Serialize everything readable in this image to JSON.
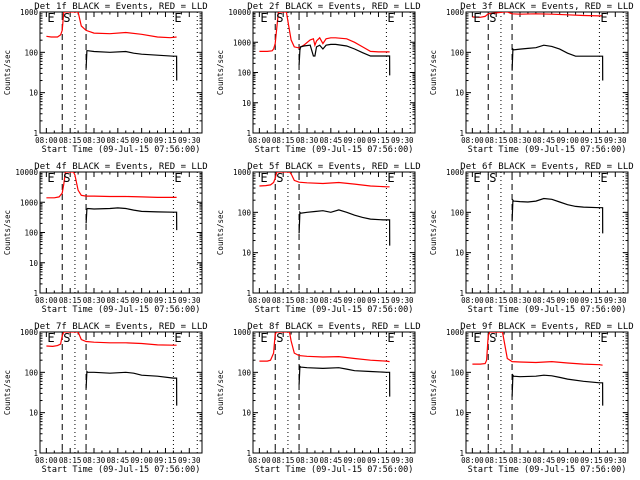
{
  "figure": {
    "layout": "3x3 grid",
    "colors": {
      "events": "#000000",
      "lld": "#ff0000",
      "axes": "#000000",
      "background": "#ffffff"
    }
  },
  "chart_data": [
    {
      "type": "line",
      "title": "Det 1f BLACK = Events, RED = LLD",
      "xlabel": "Start Time (09-Jul-15 07:56:00)",
      "ylabel": "Counts/sec",
      "yscale": "log",
      "ylim": [
        1,
        1000
      ],
      "yticks": [
        "1",
        "10",
        "100",
        "1000"
      ],
      "xticks": [
        "08:00",
        "08:15",
        "08:30",
        "08:45",
        "09:00",
        "09:15",
        "09:30"
      ],
      "xlim_min": [
        0,
        98
      ],
      "markers": [
        {
          "label": "E",
          "t": 0
        },
        {
          "label": "S",
          "t": 10
        },
        {
          "label": "E",
          "t": 80
        }
      ],
      "vlines_dashed": [
        10,
        25
      ],
      "vlines_dotted": [
        18,
        80,
        95
      ],
      "series": [
        {
          "name": "LLD",
          "color": "red",
          "t": [
            0,
            3,
            7,
            9,
            10,
            11,
            12,
            13,
            19,
            20,
            22,
            25,
            30,
            40,
            50,
            60,
            70,
            78,
            82
          ],
          "values": [
            250,
            240,
            240,
            270,
            350,
            1200,
            3000,
            5000,
            5000,
            1200,
            450,
            350,
            300,
            290,
            310,
            280,
            240,
            230,
            240
          ]
        },
        {
          "name": "Events",
          "color": "black",
          "t": [
            25,
            25.5,
            26,
            30,
            40,
            50,
            55,
            60,
            70,
            80,
            82,
            82.1
          ],
          "values": [
            40,
            110,
            110,
            105,
            100,
            105,
            95,
            90,
            85,
            80,
            80,
            20
          ]
        }
      ]
    },
    {
      "type": "line",
      "title": "Det 2f BLACK = Events, RED = LLD",
      "xlabel": "Start Time (09-Jul-15 07:56:00)",
      "ylabel": "Counts/sec",
      "yscale": "log",
      "ylim": [
        1,
        10000
      ],
      "yticks": [
        "1",
        "10",
        "100",
        "1000",
        "10000"
      ],
      "xticks": [
        "08:00",
        "08:15",
        "08:30",
        "08:45",
        "09:00",
        "09:15",
        "09:30"
      ],
      "markers": [
        {
          "label": "E",
          "t": 0
        },
        {
          "label": "S",
          "t": 10
        },
        {
          "label": "E",
          "t": 80
        }
      ],
      "vlines_dashed": [
        10,
        25
      ],
      "vlines_dotted": [
        18,
        80,
        95
      ],
      "series": [
        {
          "name": "LLD",
          "color": "red",
          "t": [
            0,
            5,
            8,
            9,
            10,
            11,
            12,
            13,
            17,
            18,
            20,
            22,
            25,
            28,
            32,
            34,
            35,
            36,
            38,
            40,
            42,
            45,
            48,
            55,
            60,
            65,
            70,
            75,
            80,
            82
          ],
          "values": [
            500,
            500,
            520,
            600,
            900,
            3000,
            10000,
            20000,
            20000,
            5000,
            1200,
            700,
            650,
            800,
            1200,
            1300,
            800,
            1100,
            1400,
            900,
            1300,
            1400,
            1400,
            1300,
            1000,
            700,
            500,
            480,
            480,
            480
          ]
        },
        {
          "name": "Events",
          "color": "black",
          "t": [
            25,
            25.5,
            26,
            28,
            32,
            34,
            35,
            36,
            38,
            40,
            42,
            45,
            48,
            55,
            60,
            65,
            70,
            80,
            82,
            82.1
          ],
          "values": [
            180,
            550,
            700,
            750,
            800,
            350,
            350,
            700,
            800,
            600,
            800,
            850,
            850,
            750,
            600,
            450,
            350,
            350,
            350,
            80
          ]
        }
      ]
    },
    {
      "type": "line",
      "title": "Det 3f BLACK = Events, RED = LLD",
      "xlabel": "Start Time (09-Jul-15 07:56:00)",
      "ylabel": "Counts/sec",
      "yscale": "log",
      "ylim": [
        1,
        1000
      ],
      "yticks": [
        "1",
        "10",
        "100",
        "1000"
      ],
      "xticks": [
        "08:00",
        "08:15",
        "08:30",
        "08:45",
        "09:00",
        "09:15",
        "09:30"
      ],
      "markers": [
        {
          "label": "E",
          "t": 0
        },
        {
          "label": "S",
          "t": 10
        },
        {
          "label": "E",
          "t": 80
        }
      ],
      "vlines_dashed": [
        10,
        25
      ],
      "vlines_dotted": [
        18,
        80,
        95
      ],
      "series": [
        {
          "name": "LLD",
          "color": "red",
          "t": [
            0,
            5,
            8,
            10,
            20,
            22,
            25,
            30,
            40,
            50,
            60,
            70,
            80,
            82
          ],
          "values": [
            750,
            740,
            780,
            900,
            1000,
            1000,
            900,
            880,
            900,
            880,
            850,
            820,
            800,
            800
          ]
        },
        {
          "name": "Events",
          "color": "black",
          "t": [
            25,
            25.5,
            26,
            30,
            35,
            40,
            45,
            50,
            55,
            60,
            65,
            70,
            80,
            82,
            82.1
          ],
          "values": [
            35,
            120,
            115,
            120,
            125,
            130,
            150,
            140,
            120,
            95,
            80,
            80,
            80,
            80,
            20
          ]
        }
      ]
    },
    {
      "type": "line",
      "title": "Det 4f BLACK = Events, RED = LLD",
      "xlabel": "Start Time (09-Jul-15 07:56:00)",
      "ylabel": "Counts/sec",
      "yscale": "log",
      "ylim": [
        1,
        10000
      ],
      "yticks": [
        "1",
        "10",
        "100",
        "1000",
        "10000"
      ],
      "xticks": [
        "08:00",
        "08:15",
        "08:30",
        "08:45",
        "09:00",
        "09:15",
        "09:30"
      ],
      "markers": [
        {
          "label": "E",
          "t": 0
        },
        {
          "label": "S",
          "t": 10
        },
        {
          "label": "E",
          "t": 80
        }
      ],
      "vlines_dashed": [
        10,
        25
      ],
      "vlines_dotted": [
        18,
        80,
        95
      ],
      "series": [
        {
          "name": "LLD",
          "color": "red",
          "t": [
            0,
            5,
            8,
            10,
            11,
            12,
            13,
            17,
            18,
            20,
            22,
            25,
            30,
            40,
            50,
            60,
            70,
            80,
            82
          ],
          "values": [
            1400,
            1400,
            1500,
            2000,
            4000,
            10000,
            15000,
            15000,
            8000,
            2500,
            1700,
            1600,
            1600,
            1550,
            1550,
            1500,
            1450,
            1450,
            1450
          ]
        },
        {
          "name": "Events",
          "color": "black",
          "t": [
            25,
            25.5,
            26,
            30,
            40,
            45,
            50,
            55,
            60,
            70,
            80,
            82,
            82.1
          ],
          "values": [
            200,
            600,
            620,
            600,
            620,
            650,
            620,
            550,
            500,
            480,
            470,
            470,
            120
          ]
        }
      ]
    },
    {
      "type": "line",
      "title": "Det 5f BLACK = Events, RED = LLD",
      "xlabel": "Start Time (09-Jul-15 07:56:00)",
      "ylabel": "Counts/sec",
      "yscale": "log",
      "ylim": [
        1,
        1000
      ],
      "yticks": [
        "1",
        "10",
        "100",
        "1000"
      ],
      "xticks": [
        "08:00",
        "08:15",
        "08:30",
        "08:45",
        "09:00",
        "09:15",
        "09:30"
      ],
      "markers": [
        {
          "label": "E",
          "t": 0
        },
        {
          "label": "S",
          "t": 10
        },
        {
          "label": "E",
          "t": 80
        }
      ],
      "vlines_dashed": [
        10,
        25
      ],
      "vlines_dotted": [
        18,
        80,
        95
      ],
      "series": [
        {
          "name": "LLD",
          "color": "red",
          "t": [
            0,
            4,
            7,
            9,
            10,
            11,
            12,
            19,
            20,
            22,
            25,
            30,
            40,
            50,
            60,
            70,
            80,
            82
          ],
          "values": [
            450,
            460,
            480,
            550,
            700,
            2000,
            3000,
            3000,
            900,
            620,
            560,
            540,
            520,
            550,
            500,
            450,
            430,
            430
          ]
        },
        {
          "name": "Events",
          "color": "black",
          "t": [
            25,
            25.5,
            26,
            30,
            35,
            40,
            45,
            50,
            55,
            60,
            65,
            70,
            78,
            80,
            82,
            82.1
          ],
          "values": [
            30,
            100,
            95,
            100,
            105,
            110,
            100,
            115,
            100,
            85,
            75,
            68,
            65,
            65,
            65,
            15
          ]
        }
      ]
    },
    {
      "type": "line",
      "title": "Det 6f BLACK = Events, RED = LLD",
      "xlabel": "Start Time (09-Jul-15 07:56:00)",
      "ylabel": "Counts/sec",
      "yscale": "log",
      "ylim": [
        1,
        1000
      ],
      "yticks": [
        "1",
        "10",
        "100",
        "1000"
      ],
      "xticks": [
        "08:00",
        "08:15",
        "08:30",
        "08:45",
        "09:00",
        "09:15",
        "09:30"
      ],
      "markers": [
        {
          "label": "E",
          "t": 0
        },
        {
          "label": "S",
          "t": 10
        },
        {
          "label": "E",
          "t": 80
        }
      ],
      "vlines_dashed": [
        10,
        25
      ],
      "vlines_dotted": [
        18,
        80,
        95
      ],
      "series": [
        {
          "name": "Events",
          "color": "black",
          "t": [
            25,
            25.5,
            26,
            30,
            35,
            40,
            45,
            50,
            55,
            60,
            65,
            70,
            80,
            82,
            82.1
          ],
          "values": [
            60,
            200,
            190,
            185,
            180,
            190,
            220,
            210,
            180,
            155,
            140,
            135,
            130,
            130,
            30
          ]
        }
      ]
    },
    {
      "type": "line",
      "title": "Det 7f BLACK = Events, RED = LLD",
      "xlabel": "Start Time (09-Jul-15 07:56:00)",
      "ylabel": "Counts/sec",
      "yscale": "log",
      "ylim": [
        1,
        1000
      ],
      "yticks": [
        "1",
        "10",
        "100",
        "1000"
      ],
      "xticks": [
        "08:00",
        "08:15",
        "08:30",
        "08:45",
        "09:00",
        "09:15",
        "09:30"
      ],
      "markers": [
        {
          "label": "E",
          "t": 0
        },
        {
          "label": "S",
          "t": 10
        },
        {
          "label": "E",
          "t": 80
        }
      ],
      "vlines_dashed": [
        10,
        25
      ],
      "vlines_dotted": [
        18,
        80,
        95
      ],
      "series": [
        {
          "name": "LLD",
          "color": "red",
          "t": [
            0,
            4,
            7,
            9,
            10,
            11,
            19,
            20,
            22,
            25,
            30,
            40,
            50,
            60,
            70,
            80,
            82
          ],
          "values": [
            450,
            440,
            460,
            500,
            800,
            3000,
            3000,
            1000,
            650,
            580,
            560,
            540,
            540,
            520,
            480,
            470,
            470
          ]
        },
        {
          "name": "Events",
          "color": "black",
          "t": [
            25,
            25.5,
            26,
            30,
            40,
            50,
            55,
            60,
            70,
            80,
            82,
            82.1
          ],
          "values": [
            40,
            105,
            100,
            100,
            95,
            100,
            95,
            85,
            80,
            72,
            72,
            15
          ]
        }
      ]
    },
    {
      "type": "line",
      "title": "Det 8f BLACK = Events, RED = LLD",
      "xlabel": "Start Time (09-Jul-15 07:56:00)",
      "ylabel": "Counts/sec",
      "yscale": "log",
      "ylim": [
        1,
        1000
      ],
      "yticks": [
        "1",
        "10",
        "100",
        "1000"
      ],
      "xticks": [
        "08:00",
        "08:15",
        "08:30",
        "08:45",
        "09:00",
        "09:15",
        "09:30"
      ],
      "markers": [
        {
          "label": "E",
          "t": 0
        },
        {
          "label": "S",
          "t": 10
        },
        {
          "label": "E",
          "t": 80
        }
      ],
      "vlines_dashed": [
        10,
        25
      ],
      "vlines_dotted": [
        18,
        80,
        95
      ],
      "series": [
        {
          "name": "LLD",
          "color": "red",
          "t": [
            0,
            5,
            7,
            9,
            10,
            11,
            12,
            19,
            20,
            22,
            25,
            30,
            40,
            50,
            60,
            70,
            80,
            82
          ],
          "values": [
            190,
            190,
            200,
            300,
            900,
            3000,
            3000,
            3000,
            600,
            300,
            260,
            250,
            240,
            245,
            220,
            200,
            190,
            185
          ]
        },
        {
          "name": "Events",
          "color": "black",
          "t": [
            25,
            25.5,
            26,
            30,
            40,
            50,
            55,
            60,
            70,
            80,
            82,
            82.1
          ],
          "values": [
            50,
            140,
            135,
            130,
            125,
            130,
            120,
            110,
            105,
            100,
            100,
            25
          ]
        }
      ]
    },
    {
      "type": "line",
      "title": "Det 9f BLACK = Events, RED = LLD",
      "xlabel": "Start Time (09-Jul-15 07:56:00)",
      "ylabel": "Counts/sec",
      "yscale": "log",
      "ylim": [
        1,
        1000
      ],
      "yticks": [
        "1",
        "10",
        "100",
        "1000"
      ],
      "xticks": [
        "08:00",
        "08:15",
        "08:30",
        "08:45",
        "09:00",
        "09:15",
        "09:30"
      ],
      "markers": [
        {
          "label": "E",
          "t": 0
        },
        {
          "label": "S",
          "t": 10
        },
        {
          "label": "E",
          "t": 80
        }
      ],
      "vlines_dashed": [
        10,
        25
      ],
      "vlines_dotted": [
        18,
        80,
        95
      ],
      "series": [
        {
          "name": "LLD",
          "color": "red",
          "t": [
            0,
            5,
            8,
            9,
            10,
            11,
            12,
            19,
            20,
            22,
            25,
            30,
            40,
            50,
            60,
            70,
            80,
            82
          ],
          "values": [
            160,
            160,
            165,
            200,
            800,
            3000,
            3000,
            3000,
            600,
            220,
            185,
            180,
            175,
            185,
            170,
            160,
            155,
            150
          ]
        },
        {
          "name": "Events",
          "color": "black",
          "t": [
            25,
            25.5,
            26,
            30,
            40,
            45,
            50,
            55,
            60,
            70,
            80,
            82,
            82.1
          ],
          "values": [
            25,
            85,
            80,
            78,
            80,
            85,
            82,
            75,
            68,
            60,
            55,
            55,
            15
          ]
        }
      ]
    }
  ]
}
